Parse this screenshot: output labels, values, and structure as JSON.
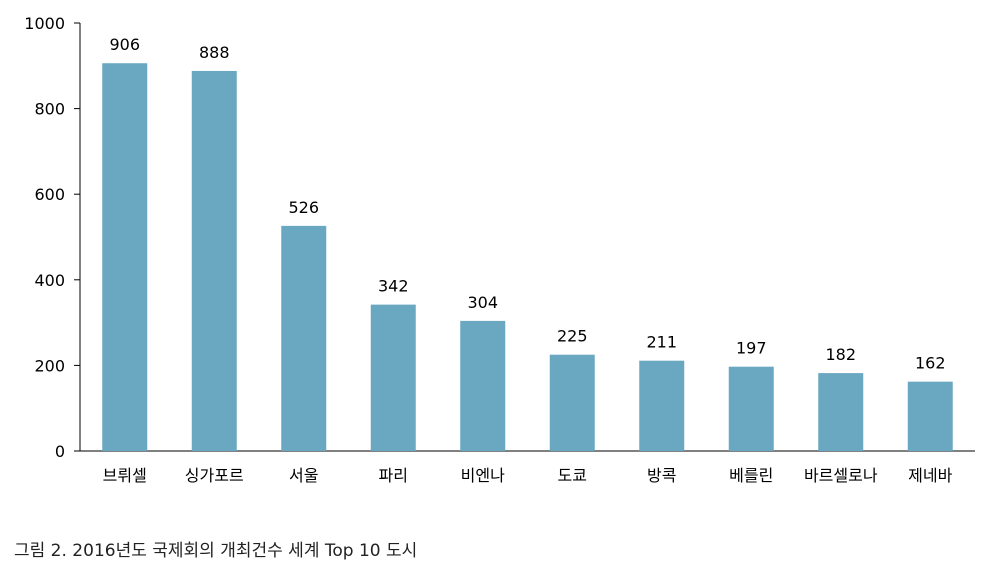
{
  "caption": "그림 2. 2016년도 국제회의 개최건수 세계 Top 10 도시",
  "colors": {
    "bar": "#6aa8c1",
    "axis": "#000000",
    "text": "#000000"
  },
  "chart_data": {
    "type": "bar",
    "categories": [
      "브뤼셀",
      "싱가포르",
      "서울",
      "파리",
      "비엔나",
      "도쿄",
      "방콕",
      "베를린",
      "바르셀로나",
      "제네바"
    ],
    "values": [
      906,
      888,
      526,
      342,
      304,
      225,
      211,
      197,
      182,
      162
    ],
    "data_labels": [
      "906",
      "888",
      "526",
      "342",
      "304",
      "225",
      "211",
      "197",
      "182",
      "162"
    ],
    "yticks": [
      0,
      200,
      400,
      600,
      800,
      1000
    ],
    "ytick_labels": [
      "0",
      "200",
      "400",
      "600",
      "800",
      "1000"
    ],
    "ylim": [
      0,
      1000
    ],
    "title": "",
    "xlabel": "",
    "ylabel": "",
    "grid": false,
    "legend": false
  }
}
